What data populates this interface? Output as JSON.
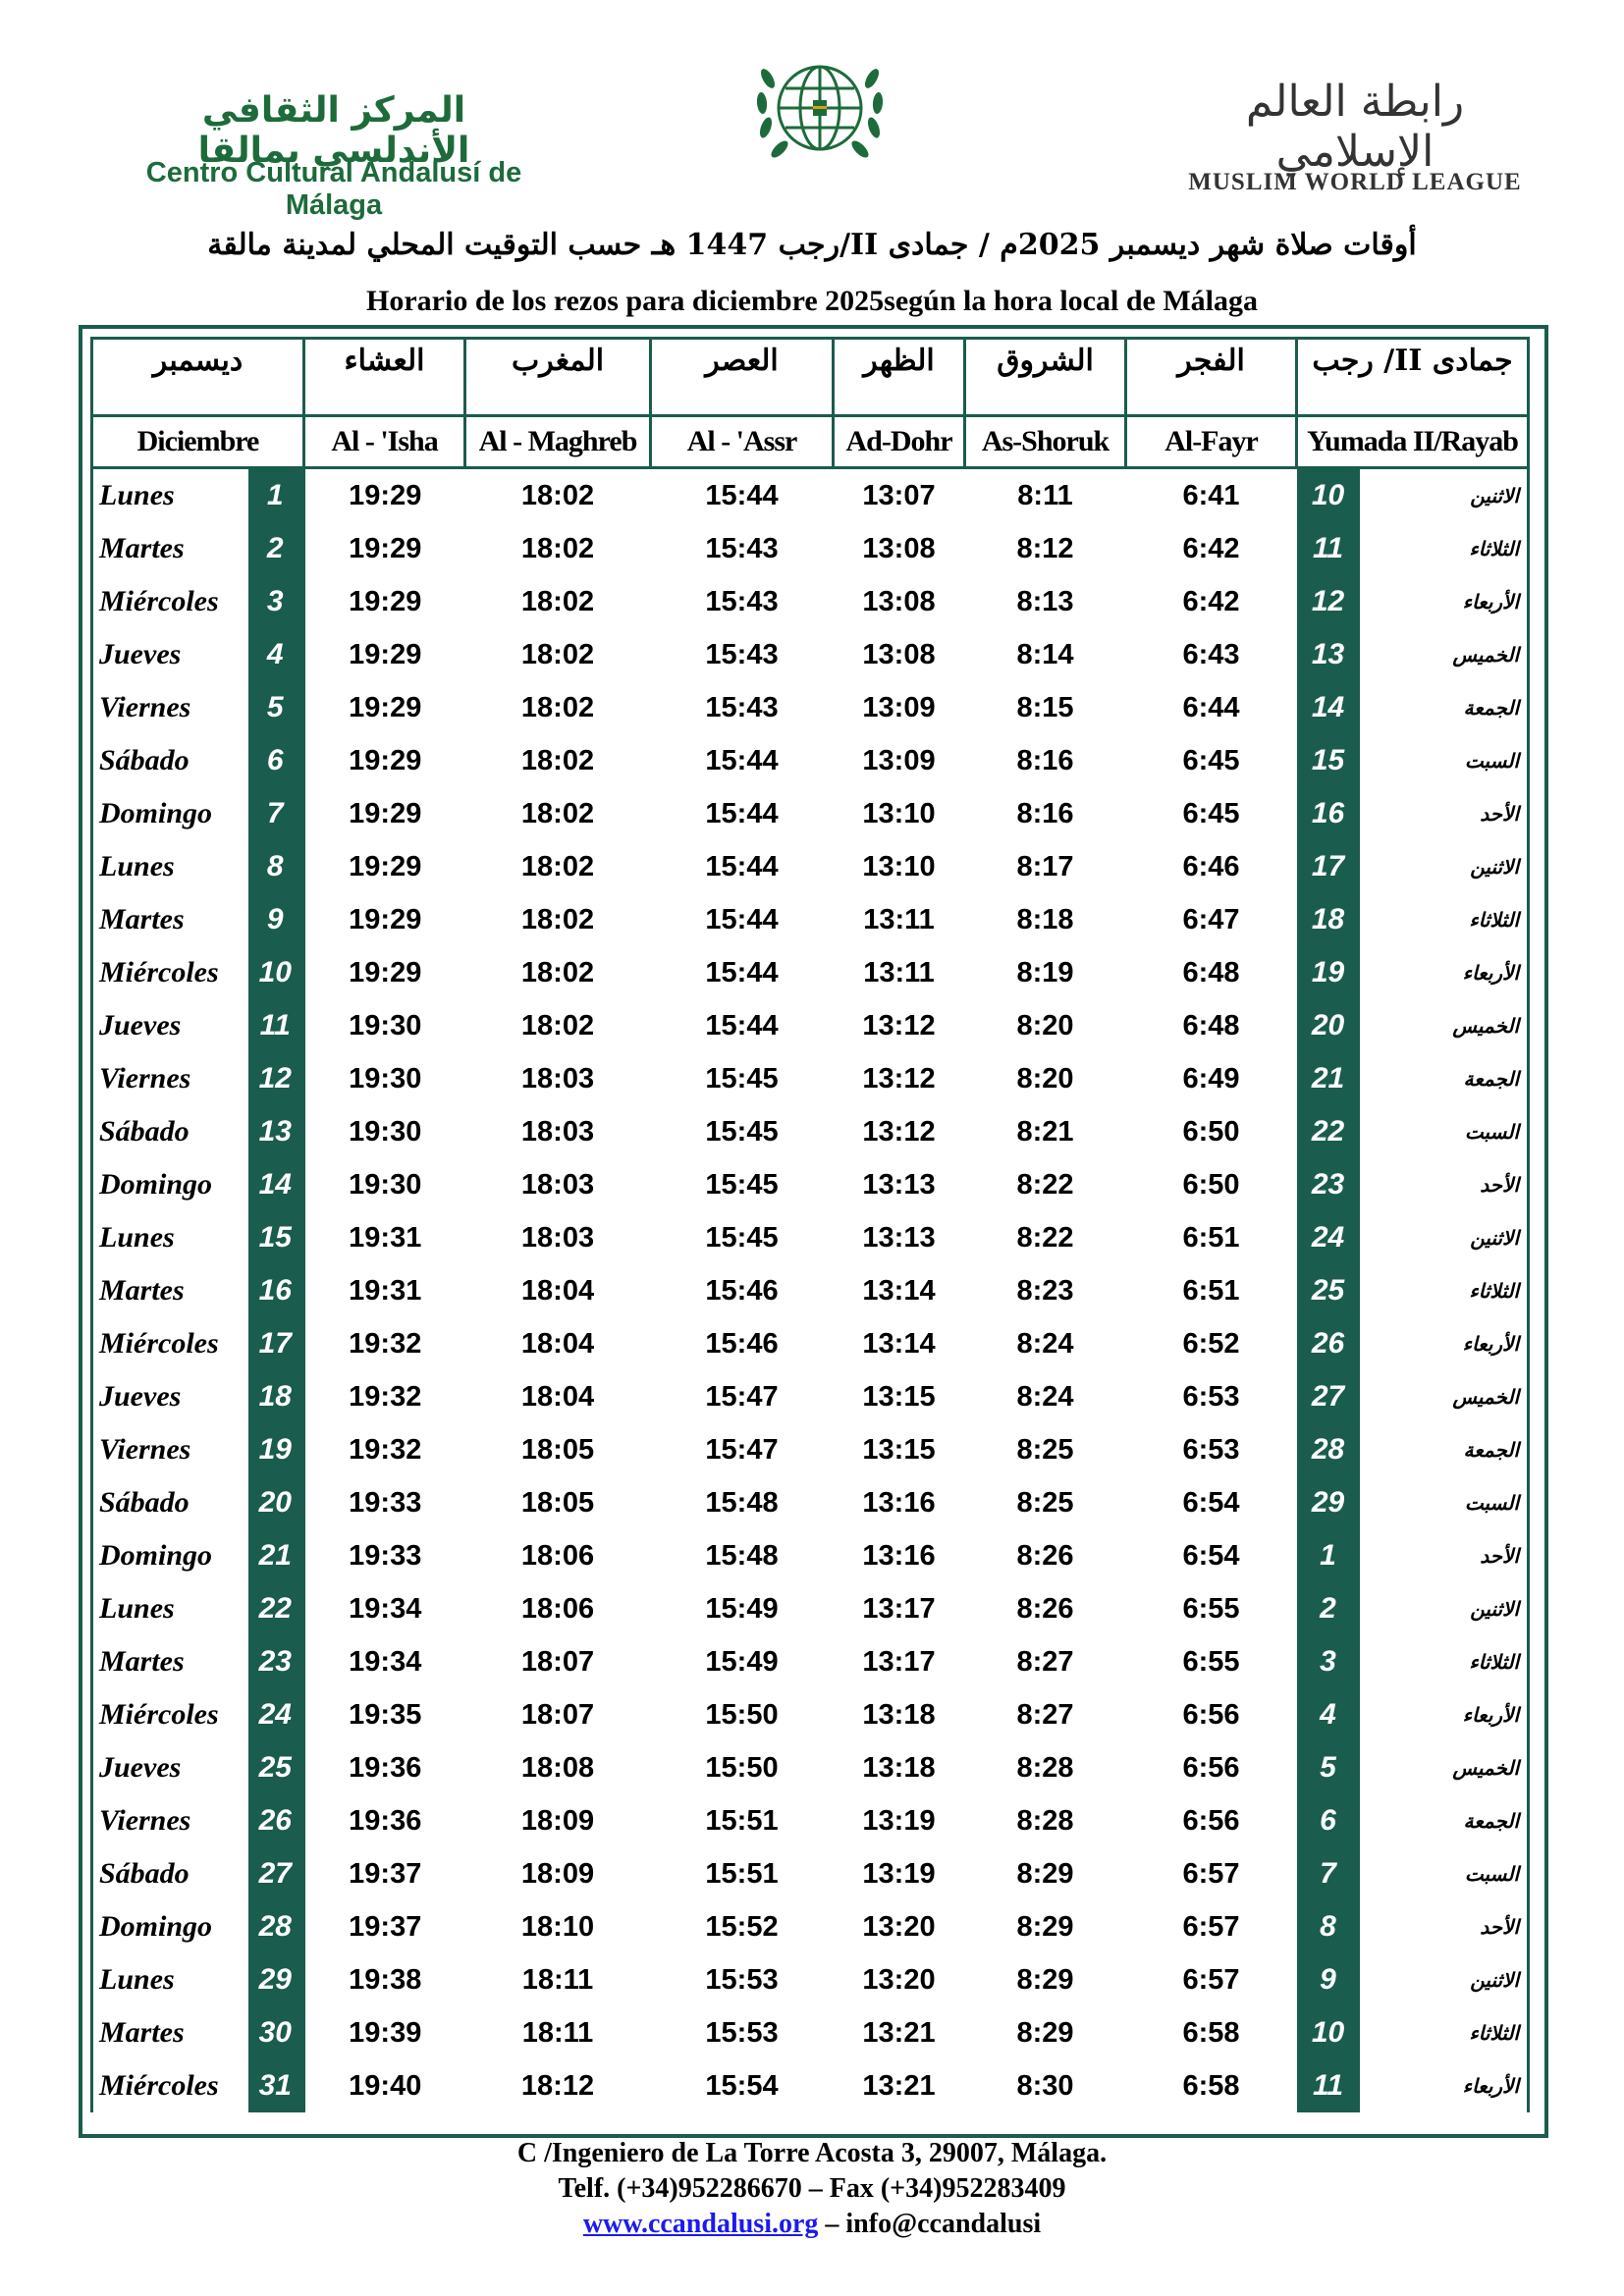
{
  "header": {
    "left_logo_ar": "المركز الثقافي الأندلسي بمالقا",
    "left_logo_es": "Centro Cultural Andalusí de Málaga",
    "right_logo_ar": "رابطة العالم الإسلامي",
    "right_logo_es": "MUSLIM WORLD LEAGUE",
    "title_ar": "أوقات صلاة شهر ديسمبر 2025م / جمادى II/رجب 1447 هـ حسب التوقيت المحلي لمدينة مالقة",
    "title_es": "Horario de los rezos para diciembre 2025según la hora local de Málaga"
  },
  "table": {
    "headers_ar": [
      "ديسمبر",
      "العشاء",
      "المغرب",
      "العصر",
      "الظهر",
      "الشروق",
      "الفجر",
      "جمادى II/ رجب"
    ],
    "headers_es": [
      "Diciembre",
      "Al - 'Isha",
      "Al - Maghreb",
      "Al - 'Assr",
      "Ad-Dohr",
      "As-Shoruk",
      "Al-Fayr",
      "Yumada II/Rayab"
    ],
    "rows": [
      [
        "Lunes",
        "1",
        "19:29",
        "18:02",
        "15:44",
        "13:07",
        "8:11",
        "6:41",
        "10",
        "الاثنين"
      ],
      [
        "Martes",
        "2",
        "19:29",
        "18:02",
        "15:43",
        "13:08",
        "8:12",
        "6:42",
        "11",
        "الثلاثاء"
      ],
      [
        "Miércoles",
        "3",
        "19:29",
        "18:02",
        "15:43",
        "13:08",
        "8:13",
        "6:42",
        "12",
        "الأربعاء"
      ],
      [
        "Jueves",
        "4",
        "19:29",
        "18:02",
        "15:43",
        "13:08",
        "8:14",
        "6:43",
        "13",
        "الخميس"
      ],
      [
        "Viernes",
        "5",
        "19:29",
        "18:02",
        "15:43",
        "13:09",
        "8:15",
        "6:44",
        "14",
        "الجمعة"
      ],
      [
        "Sábado",
        "6",
        "19:29",
        "18:02",
        "15:44",
        "13:09",
        "8:16",
        "6:45",
        "15",
        "السبت"
      ],
      [
        "Domingo",
        "7",
        "19:29",
        "18:02",
        "15:44",
        "13:10",
        "8:16",
        "6:45",
        "16",
        "الأحد"
      ],
      [
        "Lunes",
        "8",
        "19:29",
        "18:02",
        "15:44",
        "13:10",
        "8:17",
        "6:46",
        "17",
        "الاثنين"
      ],
      [
        "Martes",
        "9",
        "19:29",
        "18:02",
        "15:44",
        "13:11",
        "8:18",
        "6:47",
        "18",
        "الثلاثاء"
      ],
      [
        "Miércoles",
        "10",
        "19:29",
        "18:02",
        "15:44",
        "13:11",
        "8:19",
        "6:48",
        "19",
        "الأربعاء"
      ],
      [
        "Jueves",
        "11",
        "19:30",
        "18:02",
        "15:44",
        "13:12",
        "8:20",
        "6:48",
        "20",
        "الخميس"
      ],
      [
        "Viernes",
        "12",
        "19:30",
        "18:03",
        "15:45",
        "13:12",
        "8:20",
        "6:49",
        "21",
        "الجمعة"
      ],
      [
        "Sábado",
        "13",
        "19:30",
        "18:03",
        "15:45",
        "13:12",
        "8:21",
        "6:50",
        "22",
        "السبت"
      ],
      [
        "Domingo",
        "14",
        "19:30",
        "18:03",
        "15:45",
        "13:13",
        "8:22",
        "6:50",
        "23",
        "الأحد"
      ],
      [
        "Lunes",
        "15",
        "19:31",
        "18:03",
        "15:45",
        "13:13",
        "8:22",
        "6:51",
        "24",
        "الاثنين"
      ],
      [
        "Martes",
        "16",
        "19:31",
        "18:04",
        "15:46",
        "13:14",
        "8:23",
        "6:51",
        "25",
        "الثلاثاء"
      ],
      [
        "Miércoles",
        "17",
        "19:32",
        "18:04",
        "15:46",
        "13:14",
        "8:24",
        "6:52",
        "26",
        "الأربعاء"
      ],
      [
        "Jueves",
        "18",
        "19:32",
        "18:04",
        "15:47",
        "13:15",
        "8:24",
        "6:53",
        "27",
        "الخميس"
      ],
      [
        "Viernes",
        "19",
        "19:32",
        "18:05",
        "15:47",
        "13:15",
        "8:25",
        "6:53",
        "28",
        "الجمعة"
      ],
      [
        "Sábado",
        "20",
        "19:33",
        "18:05",
        "15:48",
        "13:16",
        "8:25",
        "6:54",
        "29",
        "السبت"
      ],
      [
        "Domingo",
        "21",
        "19:33",
        "18:06",
        "15:48",
        "13:16",
        "8:26",
        "6:54",
        "1",
        "الأحد"
      ],
      [
        "Lunes",
        "22",
        "19:34",
        "18:06",
        "15:49",
        "13:17",
        "8:26",
        "6:55",
        "2",
        "الاثنين"
      ],
      [
        "Martes",
        "23",
        "19:34",
        "18:07",
        "15:49",
        "13:17",
        "8:27",
        "6:55",
        "3",
        "الثلاثاء"
      ],
      [
        "Miércoles",
        "24",
        "19:35",
        "18:07",
        "15:50",
        "13:18",
        "8:27",
        "6:56",
        "4",
        "الأربعاء"
      ],
      [
        "Jueves",
        "25",
        "19:36",
        "18:08",
        "15:50",
        "13:18",
        "8:28",
        "6:56",
        "5",
        "الخميس"
      ],
      [
        "Viernes",
        "26",
        "19:36",
        "18:09",
        "15:51",
        "13:19",
        "8:28",
        "6:56",
        "6",
        "الجمعة"
      ],
      [
        "Sábado",
        "27",
        "19:37",
        "18:09",
        "15:51",
        "13:19",
        "8:29",
        "6:57",
        "7",
        "السبت"
      ],
      [
        "Domingo",
        "28",
        "19:37",
        "18:10",
        "15:52",
        "13:20",
        "8:29",
        "6:57",
        "8",
        "الأحد"
      ],
      [
        "Lunes",
        "29",
        "19:38",
        "18:11",
        "15:53",
        "13:20",
        "8:29",
        "6:57",
        "9",
        "الاثنين"
      ],
      [
        "Martes",
        "30",
        "19:39",
        "18:11",
        "15:53",
        "13:21",
        "8:29",
        "6:58",
        "10",
        "الثلاثاء"
      ],
      [
        "Miércoles",
        "31",
        "19:40",
        "18:12",
        "15:54",
        "13:21",
        "8:30",
        "6:58",
        "11",
        "الأربعاء"
      ]
    ]
  },
  "footer": {
    "address": "C /Ingeniero de La Torre Acosta 3, 29007, Málaga.",
    "phone": "Telf. (+34)952286670 – Fax (+34)952283409",
    "website": "www.ccandalusi.org",
    "email": " – info@ccandalusi"
  }
}
